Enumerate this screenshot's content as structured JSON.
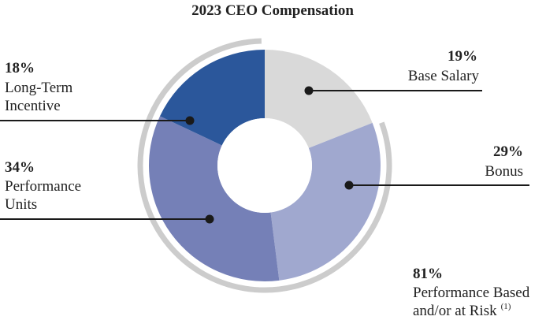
{
  "chart_data": {
    "type": "pie",
    "subtype": "donut",
    "title": "2023 CEO Compensation",
    "slices": [
      {
        "key": "base-salary",
        "label": "Base Salary",
        "value": 19,
        "pct_label": "19%",
        "color": "#d9d9d9"
      },
      {
        "key": "bonus",
        "label": "Bonus",
        "value": 29,
        "pct_label": "29%",
        "color": "#a0a8cf"
      },
      {
        "key": "performance-units",
        "label": "Performance Units",
        "value": 34,
        "pct_label": "34%",
        "color": "#7580b7"
      },
      {
        "key": "long-term-incentive",
        "label": "Long-Term Incentive",
        "value": 18,
        "pct_label": "18%",
        "color": "#2b579b"
      }
    ],
    "group_annotation": {
      "pct_label": "81%",
      "label_line1": "Performance Based",
      "label_line2": "and/or at Risk",
      "footnote": "(1)",
      "value": 81,
      "ring_color": "#cccccc"
    },
    "label_lines": {
      "base_salary": [
        "Base Salary"
      ],
      "bonus": [
        "Bonus"
      ],
      "performance_units": [
        "Performance",
        "Units"
      ],
      "long_term_incentive": [
        "Long-Term",
        "Incentive"
      ]
    }
  }
}
